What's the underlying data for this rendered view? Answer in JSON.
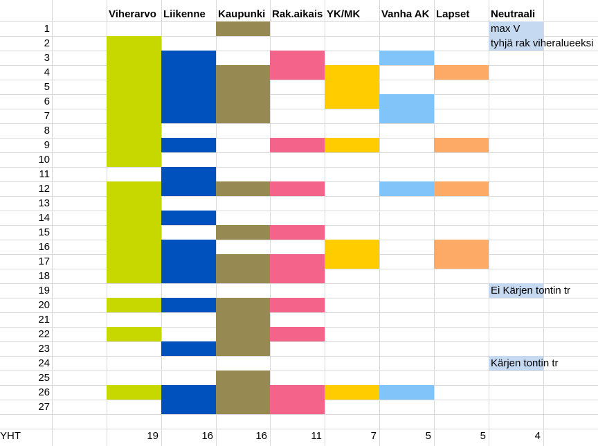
{
  "columns": [
    {
      "key": "viherarvo",
      "label": "Viherarvo",
      "color": "#c6d800",
      "total": "19",
      "cells": [
        2,
        3,
        4,
        5,
        6,
        7,
        8,
        9,
        10,
        12,
        13,
        14,
        15,
        16,
        17,
        18,
        20,
        22,
        26
      ]
    },
    {
      "key": "liikenne",
      "label": "Liikenne",
      "color": "#0050be",
      "total": "16",
      "cells": [
        3,
        4,
        5,
        6,
        7,
        9,
        11,
        12,
        14,
        16,
        17,
        18,
        20,
        23,
        26,
        27
      ]
    },
    {
      "key": "kaupunki",
      "label": "Kaupunki",
      "color": "#968a52",
      "total": "16",
      "cells": [
        1,
        4,
        5,
        6,
        7,
        12,
        15,
        17,
        18,
        20,
        21,
        22,
        23,
        25,
        26,
        27
      ]
    },
    {
      "key": "rakaikais",
      "label": "Rak.aikais",
      "color": "#f4638a",
      "total": "11",
      "cells": [
        3,
        4,
        9,
        12,
        15,
        17,
        18,
        20,
        22,
        26,
        27
      ]
    },
    {
      "key": "ykmk",
      "label": "YK/MK",
      "color": "#ffcc00",
      "total": "7",
      "cells": [
        4,
        5,
        6,
        9,
        16,
        17,
        26
      ]
    },
    {
      "key": "vanhaak",
      "label": "Vanha AK",
      "color": "#80c4fa",
      "total": "5",
      "cells": [
        3,
        6,
        7,
        12,
        26
      ]
    },
    {
      "key": "lapset",
      "label": "Lapset",
      "color": "#fdaa67",
      "total": "5",
      "cells": [
        4,
        9,
        12,
        16,
        17
      ]
    },
    {
      "key": "neutraali",
      "label": "Neutraali",
      "color": "#c5d9f1",
      "total": "4",
      "cells": [
        1,
        2,
        19,
        24
      ]
    }
  ],
  "rows": [
    "1",
    "2",
    "3",
    "4",
    "5",
    "6",
    "7",
    "8",
    "9",
    "10",
    "11",
    "12",
    "13",
    "14",
    "15",
    "16",
    "17",
    "18",
    "19",
    "20",
    "21",
    "22",
    "23",
    "24",
    "25",
    "26",
    "27"
  ],
  "notes": {
    "1": "max V",
    "2": "tyhjä rak viheralueeksi",
    "19": "Ei Kärjen tontin tr",
    "24": "Kärjen tontin tr"
  },
  "total_label": "YHT"
}
